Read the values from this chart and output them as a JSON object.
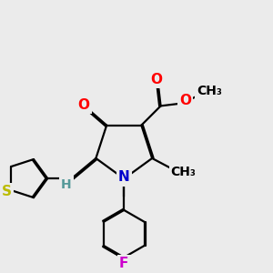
{
  "bg_color": "#ebebeb",
  "bond_color": "#000000",
  "bond_width": 1.6,
  "dbo": 0.05,
  "atom_colors": {
    "O": "#ff0000",
    "N": "#0000cc",
    "S": "#bbbb00",
    "F": "#cc00cc",
    "H": "#559999",
    "C": "#000000"
  },
  "font_size": 11
}
